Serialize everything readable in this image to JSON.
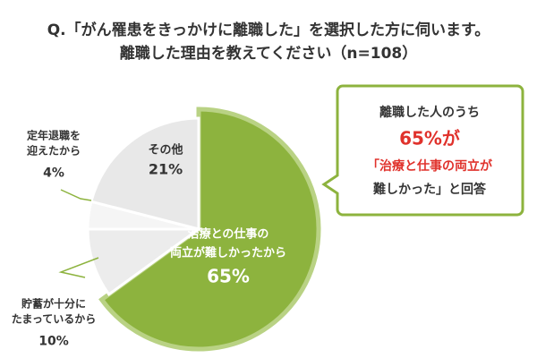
{
  "chart_data": {
    "type": "pie",
    "title": [
      "Q.「がん罹患をきっかけに離職した」を選択した方に伺います。",
      "離職した理由を教えてください（n=108）"
    ],
    "categories": [
      [
        "治療との仕事の",
        "両立が難しかったから"
      ],
      [
        "貯蓄が十分に",
        "たまっているから"
      ],
      [
        "定年退職を",
        "迎えたから"
      ],
      [
        "その他"
      ]
    ],
    "values": [
      65,
      10,
      4,
      21
    ],
    "value_labels": [
      "65%",
      "10%",
      "4%",
      "21%"
    ],
    "colors": [
      "#8db33e",
      "#ececec",
      "#f5f5f5",
      "#e8e8e8"
    ],
    "annotation": [
      "離職した人のうち",
      "65%が",
      "「治療と仕事の両立が",
      "難しかった」と回答"
    ]
  }
}
